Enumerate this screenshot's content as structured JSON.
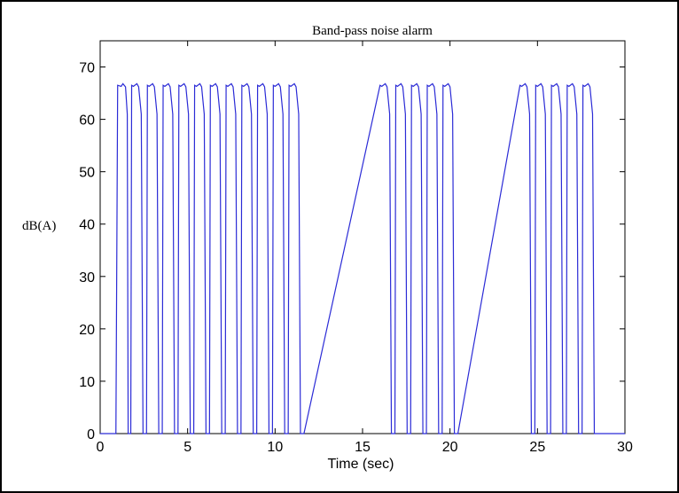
{
  "chart_data": {
    "type": "line",
    "title": "Band-pass noise alarm",
    "xlabel": "Time (sec)",
    "ylabel": "dB(A)",
    "xlim": [
      0,
      30
    ],
    "ylim": [
      0,
      75
    ],
    "xticks": [
      0,
      5,
      10,
      15,
      20,
      25,
      30
    ],
    "yticks": [
      0,
      10,
      20,
      30,
      40,
      50,
      60,
      70
    ],
    "grid": false,
    "line_color": "#2b2bd6",
    "series": [
      {
        "x": [
          0,
          0.9,
          1.0,
          1.2,
          1.3,
          1.45,
          1.55,
          1.6,
          1.75,
          1.8,
          1.9,
          2.1,
          2.2,
          2.35,
          2.45,
          2.5,
          2.65,
          2.7,
          2.8,
          3.0,
          3.1,
          3.25,
          3.35,
          3.4,
          3.55,
          3.6,
          3.7,
          3.9,
          4.0,
          4.15,
          4.25,
          4.3,
          4.45,
          4.5,
          4.6,
          4.8,
          4.9,
          5.05,
          5.15,
          5.2,
          5.35,
          5.4,
          5.5,
          5.7,
          5.8,
          5.95,
          6.05,
          6.1,
          6.25,
          6.3,
          6.4,
          6.6,
          6.7,
          6.85,
          6.95,
          7.0,
          7.15,
          7.2,
          7.3,
          7.5,
          7.6,
          7.75,
          7.85,
          7.9,
          8.05,
          8.1,
          8.2,
          8.4,
          8.5,
          8.65,
          8.75,
          8.8,
          8.95,
          9.0,
          9.1,
          9.3,
          9.4,
          9.55,
          9.65,
          9.7,
          9.85,
          9.9,
          10.0,
          10.2,
          10.3,
          10.45,
          10.55,
          10.6,
          10.75,
          10.8,
          10.9,
          11.1,
          11.2,
          11.35,
          11.45,
          11.5,
          11.65,
          16.0,
          16.1,
          16.3,
          16.4,
          16.55,
          16.65,
          16.7,
          16.85,
          16.9,
          17.0,
          17.2,
          17.3,
          17.45,
          17.55,
          17.6,
          17.75,
          17.8,
          17.9,
          18.1,
          18.2,
          18.35,
          18.45,
          18.5,
          18.65,
          18.7,
          18.8,
          19.0,
          19.1,
          19.25,
          19.35,
          19.4,
          19.55,
          19.6,
          19.7,
          19.9,
          20.0,
          20.15,
          20.25,
          20.3,
          20.45,
          24.0,
          24.1,
          24.3,
          24.4,
          24.55,
          24.65,
          24.7,
          24.85,
          24.9,
          25.0,
          25.2,
          25.3,
          25.45,
          25.55,
          25.6,
          25.75,
          25.8,
          25.9,
          26.1,
          26.2,
          26.35,
          26.45,
          26.5,
          26.65,
          26.7,
          26.8,
          27.0,
          27.1,
          27.25,
          27.35,
          27.4,
          27.55,
          27.6,
          27.7,
          27.9,
          28.0,
          28.15,
          28.25,
          28.3,
          28.45,
          30
        ],
        "y": [
          0,
          0,
          66.5,
          66.3,
          66.8,
          66.2,
          61,
          0,
          0,
          66.5,
          66.3,
          66.8,
          66.2,
          61,
          0,
          0,
          0,
          66.5,
          66.3,
          66.8,
          66.2,
          61,
          0,
          0,
          0,
          66.5,
          66.3,
          66.8,
          66.2,
          61,
          0,
          0,
          0,
          66.5,
          66.3,
          66.8,
          66.2,
          61,
          0,
          0,
          0,
          66.5,
          66.3,
          66.8,
          66.2,
          61,
          0,
          0,
          0,
          66.5,
          66.3,
          66.8,
          66.2,
          61,
          0,
          0,
          0,
          66.5,
          66.3,
          66.8,
          66.2,
          61,
          0,
          0,
          0,
          66.5,
          66.3,
          66.8,
          66.2,
          61,
          0,
          0,
          0,
          66.5,
          66.3,
          66.8,
          66.2,
          61,
          0,
          0,
          0,
          66.5,
          66.3,
          66.8,
          66.2,
          61,
          0,
          0,
          0,
          66.5,
          66.3,
          66.8,
          66.2,
          61,
          0,
          0,
          0,
          66.5,
          66.3,
          66.8,
          66.2,
          61,
          0,
          0,
          0,
          66.5,
          66.3,
          66.8,
          66.2,
          61,
          0,
          0,
          0,
          66.5,
          66.3,
          66.8,
          66.2,
          61,
          0,
          0,
          0,
          66.5,
          66.3,
          66.8,
          66.2,
          61,
          0,
          0,
          0,
          66.5,
          66.3,
          66.8,
          66.2,
          61,
          0,
          0,
          0,
          66.5,
          66.3,
          66.8,
          66.2,
          61,
          0,
          0,
          0,
          66.5,
          66.3,
          66.8,
          66.2,
          61,
          0,
          0,
          0,
          66.5,
          66.3,
          66.8,
          66.2,
          61,
          0,
          0,
          0,
          66.5,
          66.3,
          66.8,
          66.2,
          61,
          0,
          0,
          0,
          66.5,
          66.3,
          66.8,
          66.2,
          61,
          0,
          0,
          0,
          0
        ]
      }
    ]
  }
}
